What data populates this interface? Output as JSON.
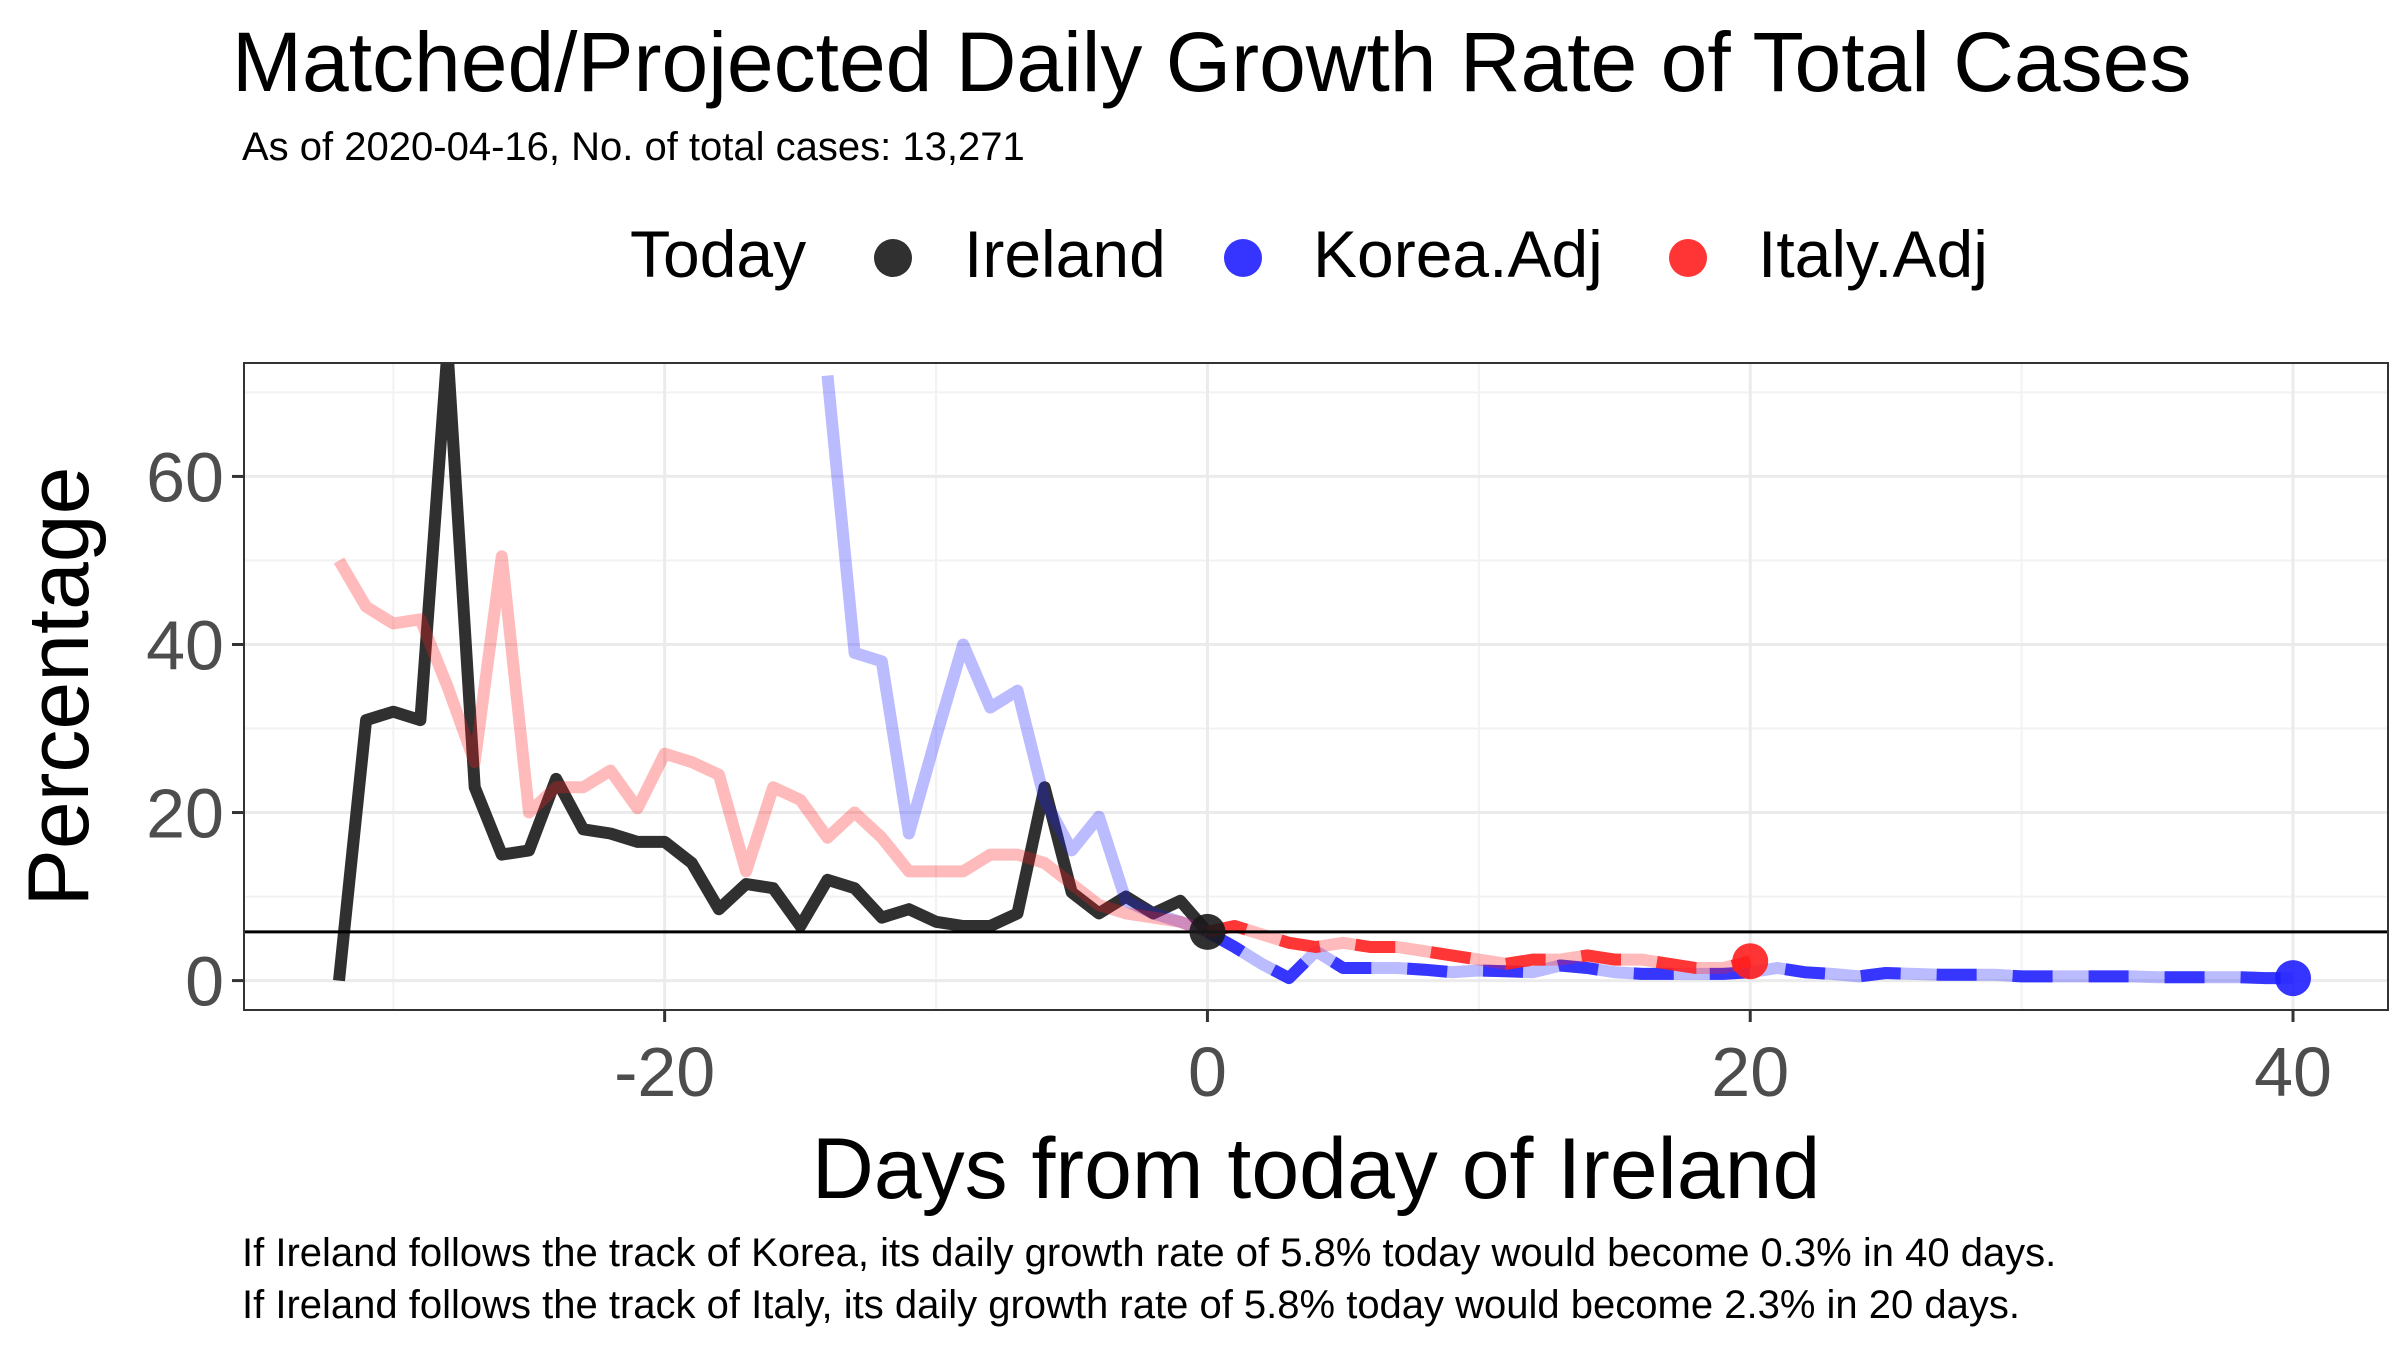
{
  "title": "Matched/Projected Daily Growth Rate of Total Cases",
  "subtitle": "As of 2020-04-16, No. of total cases: 13,271",
  "captions": [
    "If Ireland follows the track of Korea, its daily growth rate of 5.8% today would become 0.3% in 40 days.",
    "If Ireland follows the track of Italy, its daily growth rate of 5.8% today would become 2.3% in 20 days."
  ],
  "legend": {
    "title": "Today",
    "items": [
      {
        "label": "Ireland",
        "color": "#1a1a1a"
      },
      {
        "label": "Korea.Adj",
        "color": "#1f1fff"
      },
      {
        "label": "Italy.Adj",
        "color": "#ff1f1f"
      }
    ]
  },
  "chart_data": {
    "type": "line",
    "xlabel": "Days from today of Ireland",
    "ylabel": "Percentage",
    "xlim": [
      -35.5,
      43.5
    ],
    "ylim": [
      -3.5,
      73.5
    ],
    "x_ticks": [
      -20,
      0,
      20,
      40
    ],
    "y_ticks": [
      0,
      20,
      40,
      60
    ],
    "grid": true,
    "legend_position": "top",
    "hline": 5.8,
    "series": [
      {
        "name": "Ireland",
        "color": "#1a1a1a",
        "x": [
          -32,
          -31,
          -30,
          -29,
          -28,
          -27,
          -26,
          -25,
          -24,
          -23,
          -22,
          -21,
          -20,
          -19,
          -18,
          -17,
          -16,
          -15,
          -14,
          -13,
          -12,
          -11,
          -10,
          -9,
          -8,
          -7,
          -6,
          -5,
          -4,
          -3,
          -2,
          -1,
          0
        ],
        "values": [
          0,
          31,
          32,
          31,
          75,
          23,
          15,
          15.5,
          24,
          18,
          17.5,
          16.5,
          16.5,
          14,
          8.5,
          11.5,
          11,
          6.5,
          12,
          11,
          7.5,
          8.5,
          7,
          6.5,
          6.5,
          8,
          23,
          10.5,
          8,
          10,
          8,
          9.5,
          5.8
        ]
      },
      {
        "name": "Korea.Adj",
        "color": "#1f1fff",
        "x": [
          -14,
          -13,
          -12,
          -11,
          -10,
          -9,
          -8,
          -7,
          -6,
          -5,
          -4,
          -3,
          -2,
          -1,
          0,
          1,
          2,
          3,
          4,
          5,
          6,
          7,
          8,
          9,
          10,
          11,
          12,
          13,
          14,
          15,
          16,
          17,
          18,
          19,
          20,
          21,
          22,
          23,
          24,
          25,
          26,
          27,
          28,
          29,
          30,
          31,
          32,
          33,
          34,
          35,
          36,
          37,
          38,
          39,
          40
        ],
        "values": [
          72,
          39,
          38,
          17.5,
          29,
          40,
          32.5,
          34.5,
          21.5,
          15.5,
          19.5,
          9.5,
          8,
          7,
          5.8,
          4,
          2,
          0.3,
          3.5,
          1.5,
          1.5,
          1.5,
          1.3,
          1,
          1.2,
          1.1,
          1,
          1.8,
          1.5,
          1,
          0.8,
          0.8,
          0.8,
          0.8,
          1,
          1.5,
          1,
          0.8,
          0.5,
          0.9,
          0.8,
          0.7,
          0.7,
          0.7,
          0.5,
          0.5,
          0.5,
          0.5,
          0.5,
          0.4,
          0.4,
          0.4,
          0.4,
          0.3,
          0.3
        ]
      },
      {
        "name": "Italy.Adj",
        "color": "#ff1f1f",
        "x": [
          -32,
          -31,
          -30,
          -29,
          -28,
          -27,
          -26,
          -25,
          -24,
          -23,
          -22,
          -21,
          -20,
          -19,
          -18,
          -17,
          -16,
          -15,
          -14,
          -13,
          -12,
          -11,
          -10,
          -9,
          -8,
          -7,
          -6,
          -5,
          -4,
          -3,
          -2,
          -1,
          0,
          1,
          2,
          3,
          4,
          5,
          6,
          7,
          8,
          9,
          10,
          11,
          12,
          13,
          14,
          15,
          16,
          17,
          18,
          19,
          20
        ],
        "values": [
          50,
          44.5,
          42.5,
          43,
          35,
          26,
          50.5,
          20,
          23,
          23,
          25,
          20.5,
          27,
          26,
          24.5,
          13,
          23,
          21.5,
          17,
          20,
          17,
          13,
          13,
          13,
          15,
          15,
          14,
          11.5,
          9,
          8,
          7.5,
          7,
          5.8,
          6.5,
          5.5,
          4.5,
          4,
          4.5,
          4,
          4,
          3.5,
          3,
          2.5,
          2,
          2.5,
          2.5,
          3,
          2.5,
          2.5,
          2,
          1.5,
          1.5,
          2.3
        ]
      }
    ]
  }
}
